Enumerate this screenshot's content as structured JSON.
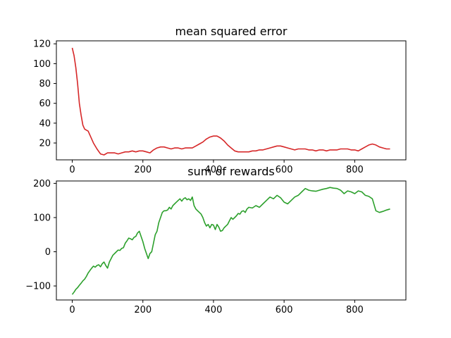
{
  "chart_data": [
    {
      "type": "line",
      "title": "mean squared error",
      "xlabel": "",
      "ylabel": "",
      "xlim": [
        -45,
        945
      ],
      "ylim": [
        3,
        123
      ],
      "xticks": [
        0,
        200,
        400,
        600,
        800
      ],
      "xtick_labels": [
        "0",
        "200",
        "400",
        "600",
        "800"
      ],
      "yticks": [
        20,
        40,
        60,
        80,
        100,
        120
      ],
      "ytick_labels": [
        "20",
        "40",
        "60",
        "80",
        "100",
        "120"
      ],
      "grid": false,
      "color": "#d62728",
      "series": [
        {
          "name": "mean squared error",
          "x": [
            0,
            5,
            10,
            15,
            20,
            25,
            30,
            35,
            40,
            45,
            50,
            60,
            70,
            80,
            90,
            100,
            110,
            120,
            130,
            140,
            150,
            160,
            170,
            180,
            190,
            200,
            210,
            220,
            230,
            240,
            250,
            260,
            270,
            280,
            290,
            300,
            310,
            320,
            330,
            340,
            350,
            360,
            370,
            380,
            390,
            400,
            410,
            420,
            430,
            440,
            450,
            460,
            470,
            480,
            490,
            500,
            510,
            520,
            530,
            540,
            550,
            560,
            570,
            580,
            590,
            600,
            610,
            620,
            630,
            640,
            650,
            660,
            670,
            680,
            690,
            700,
            710,
            720,
            730,
            740,
            750,
            760,
            770,
            780,
            790,
            800,
            810,
            820,
            830,
            840,
            850,
            860,
            870,
            880,
            890,
            900
          ],
          "values": [
            116,
            108,
            96,
            80,
            60,
            48,
            38,
            34,
            33,
            32,
            28,
            20,
            14,
            9,
            8,
            10,
            10,
            10,
            9,
            10,
            11,
            11,
            12,
            11,
            12,
            12,
            11,
            10,
            13,
            15,
            16,
            16,
            15,
            14,
            15,
            15,
            14,
            15,
            15,
            15,
            17,
            19,
            21,
            24,
            26,
            27,
            27,
            25,
            22,
            18,
            15,
            12,
            11,
            11,
            11,
            11,
            12,
            12,
            13,
            13,
            14,
            15,
            16,
            17,
            17,
            16,
            15,
            14,
            13,
            14,
            14,
            14,
            13,
            13,
            12,
            13,
            13,
            12,
            13,
            13,
            13,
            14,
            14,
            14,
            13,
            13,
            12,
            14,
            16,
            18,
            19,
            18,
            16,
            15,
            14,
            14
          ]
        }
      ]
    },
    {
      "type": "line",
      "title": "sum of rewards",
      "xlabel": "",
      "ylabel": "",
      "xlim": [
        -45,
        945
      ],
      "ylim": [
        -141,
        207
      ],
      "xticks": [
        0,
        200,
        400,
        600,
        800
      ],
      "xtick_labels": [
        "0",
        "200",
        "400",
        "600",
        "800"
      ],
      "yticks": [
        -100,
        0,
        100,
        200
      ],
      "ytick_labels": [
        "−100",
        "0",
        "100",
        "200"
      ],
      "grid": false,
      "color": "#2ca02c",
      "series": [
        {
          "name": "sum of rewards",
          "x": [
            0,
            5,
            10,
            15,
            20,
            25,
            30,
            35,
            40,
            45,
            50,
            55,
            60,
            65,
            70,
            75,
            80,
            85,
            90,
            95,
            100,
            105,
            110,
            115,
            120,
            125,
            130,
            135,
            140,
            145,
            150,
            155,
            160,
            165,
            170,
            175,
            180,
            185,
            190,
            195,
            200,
            205,
            210,
            215,
            220,
            225,
            230,
            235,
            240,
            245,
            250,
            255,
            260,
            265,
            270,
            275,
            280,
            285,
            290,
            295,
            300,
            305,
            310,
            315,
            320,
            325,
            330,
            335,
            340,
            345,
            350,
            355,
            360,
            365,
            370,
            375,
            380,
            385,
            390,
            395,
            400,
            405,
            410,
            415,
            420,
            425,
            430,
            435,
            440,
            445,
            450,
            455,
            460,
            465,
            470,
            475,
            480,
            485,
            490,
            495,
            500,
            510,
            520,
            530,
            540,
            550,
            560,
            570,
            580,
            590,
            600,
            610,
            620,
            630,
            640,
            650,
            660,
            670,
            680,
            690,
            700,
            710,
            720,
            730,
            740,
            750,
            760,
            770,
            780,
            790,
            800,
            810,
            820,
            830,
            840,
            850,
            860,
            870,
            880,
            890,
            900
          ],
          "values": [
            -125,
            -118,
            -110,
            -105,
            -98,
            -92,
            -85,
            -80,
            -72,
            -62,
            -55,
            -48,
            -42,
            -45,
            -40,
            -38,
            -44,
            -35,
            -30,
            -40,
            -48,
            -30,
            -20,
            -10,
            -5,
            0,
            5,
            4,
            10,
            12,
            25,
            32,
            40,
            38,
            35,
            42,
            45,
            55,
            60,
            45,
            30,
            10,
            -5,
            -20,
            -5,
            0,
            25,
            50,
            60,
            85,
            100,
            115,
            120,
            120,
            122,
            130,
            125,
            135,
            140,
            145,
            150,
            155,
            148,
            155,
            158,
            152,
            155,
            150,
            160,
            135,
            125,
            120,
            115,
            110,
            100,
            85,
            75,
            80,
            70,
            80,
            78,
            65,
            80,
            72,
            60,
            62,
            70,
            75,
            80,
            90,
            100,
            95,
            100,
            105,
            112,
            110,
            118,
            120,
            115,
            125,
            130,
            128,
            135,
            130,
            140,
            150,
            160,
            155,
            165,
            158,
            145,
            140,
            150,
            160,
            165,
            175,
            185,
            180,
            178,
            177,
            180,
            183,
            185,
            188,
            186,
            185,
            180,
            170,
            178,
            175,
            170,
            178,
            175,
            165,
            162,
            155,
            120,
            115,
            118,
            122,
            125
          ]
        }
      ]
    }
  ]
}
